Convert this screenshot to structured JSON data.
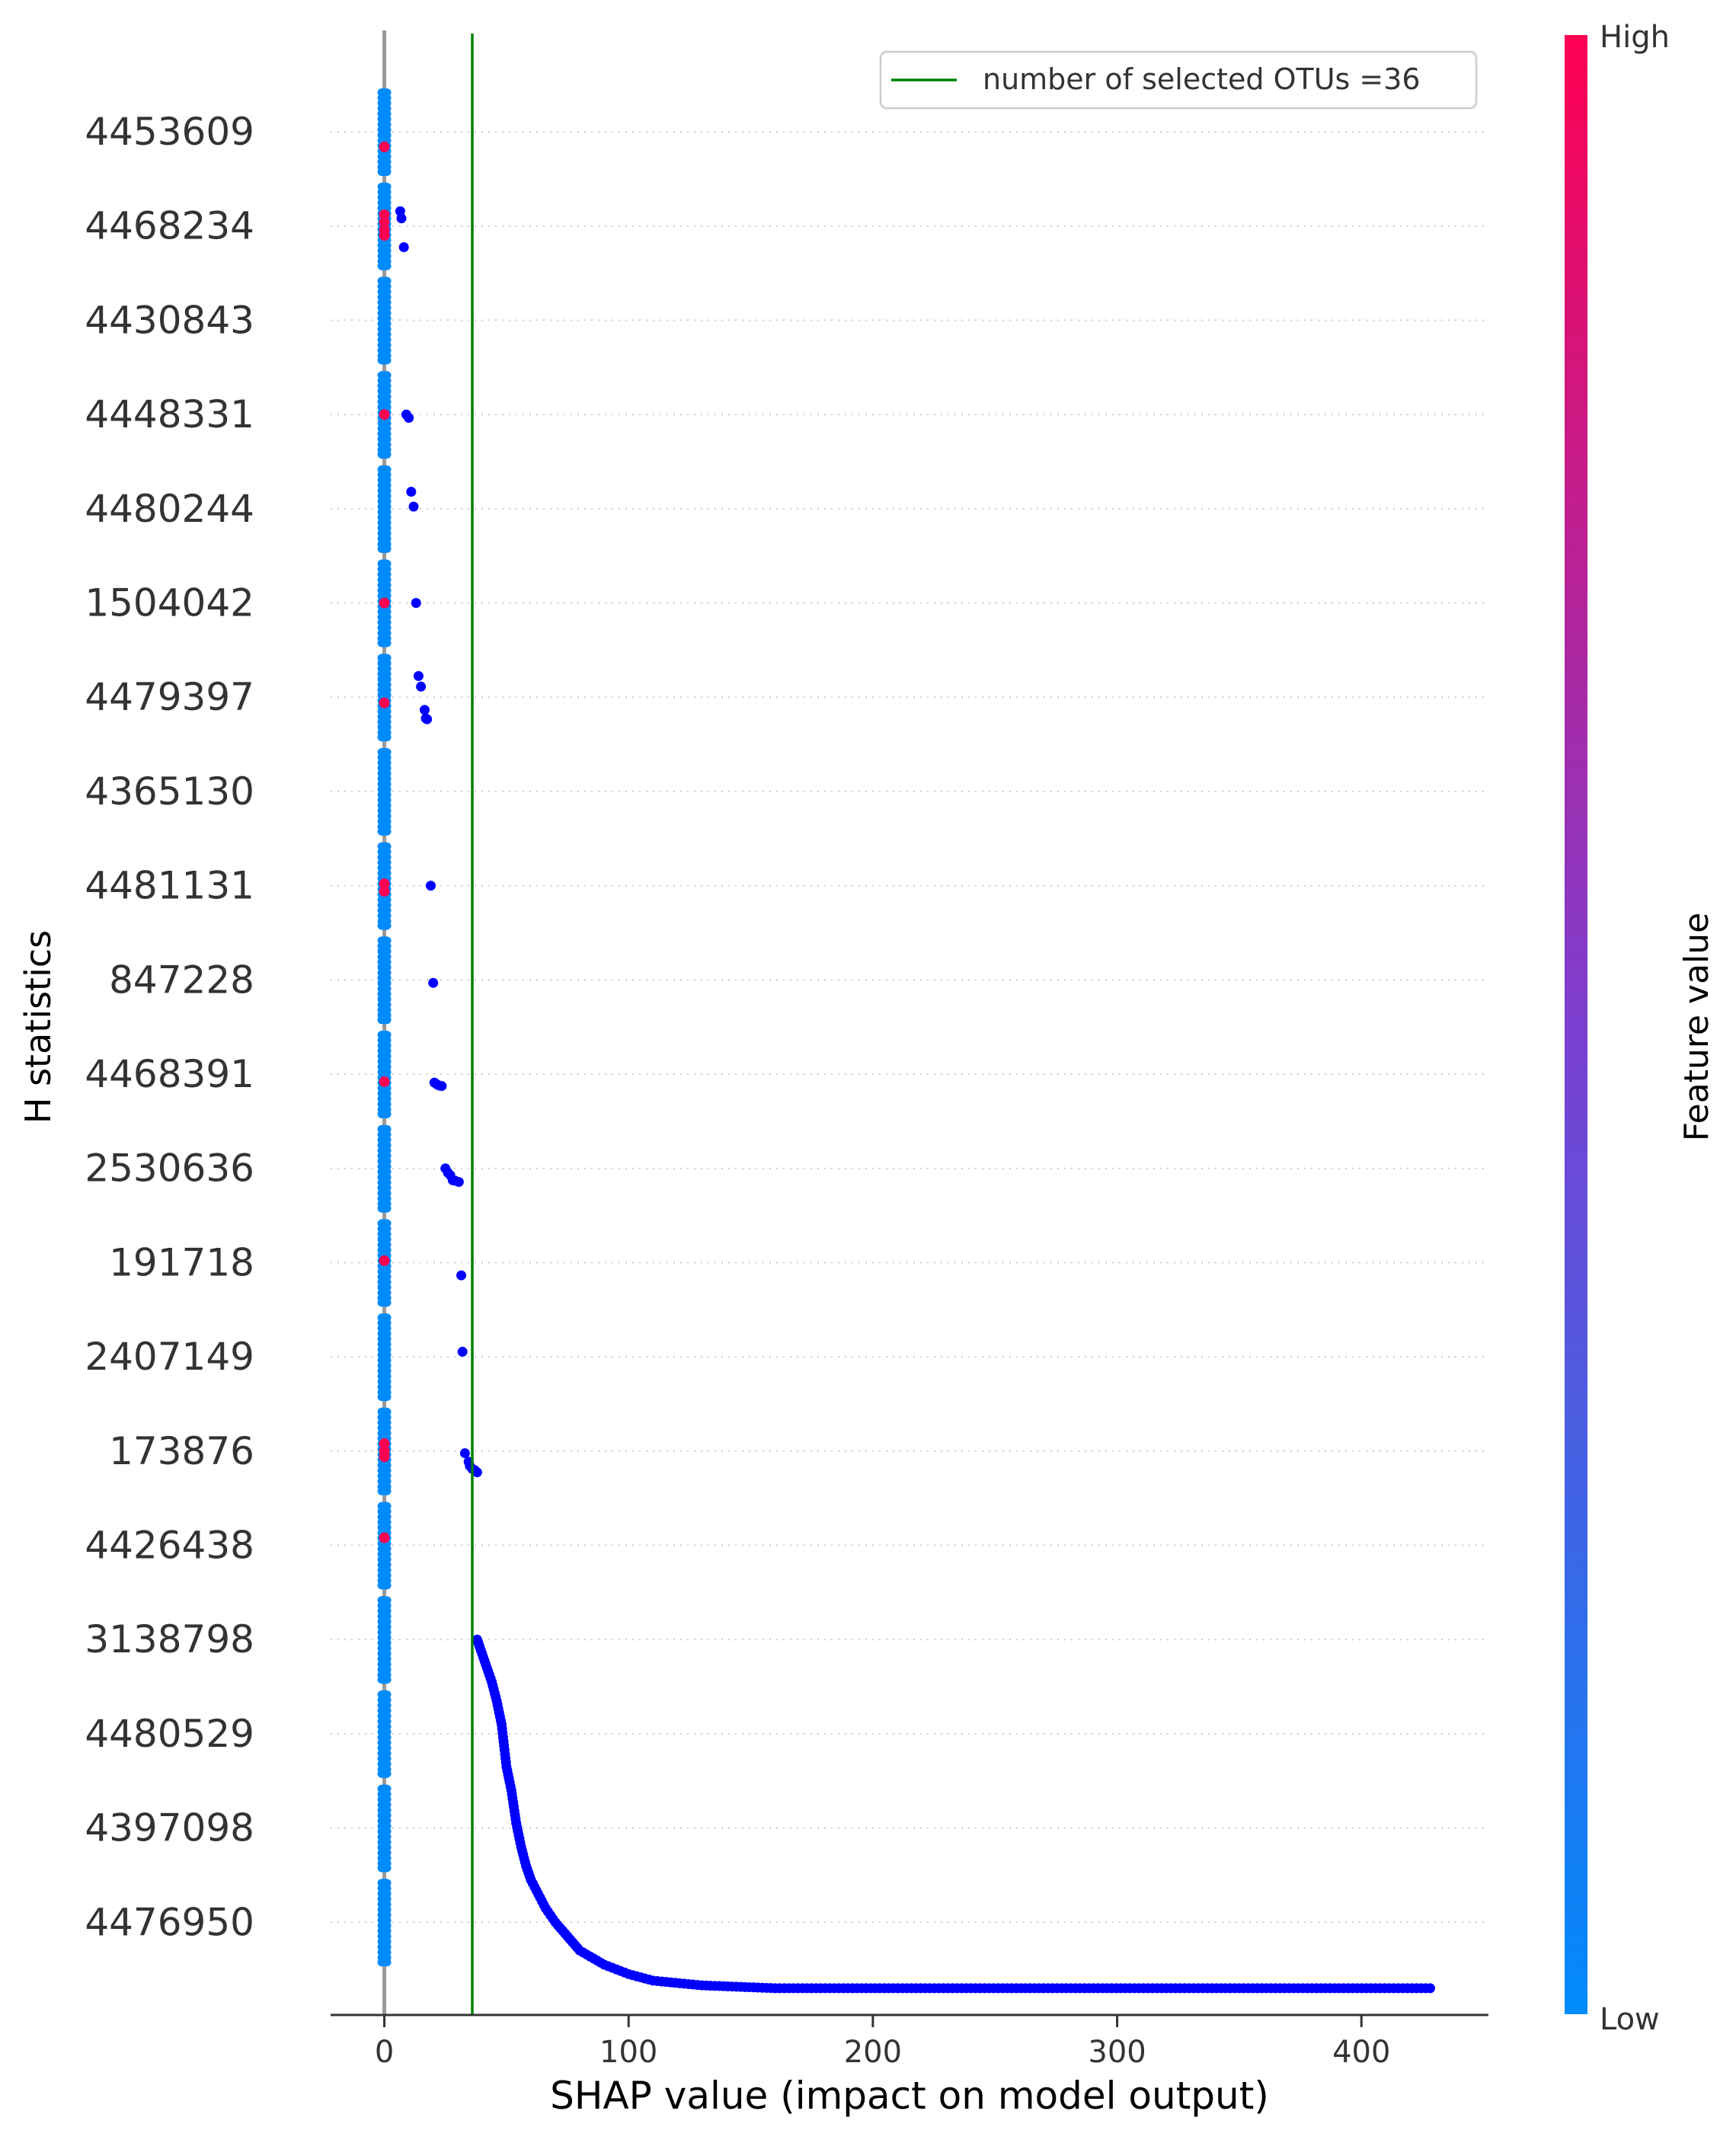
{
  "chart_data": {
    "type": "scatter",
    "title": "",
    "xlabel": "SHAP value (impact on model output)",
    "ylabel": "H statistics",
    "xlim": [
      -22,
      452
    ],
    "xticks": [
      0,
      100,
      200,
      300,
      400
    ],
    "grid": "horizontal dotted",
    "categories": [
      "4453609",
      "4468234",
      "4430843",
      "4448331",
      "4480244",
      "1504042",
      "4479397",
      "4365130",
      "4481131",
      "847228",
      "4468391",
      "2530636",
      "191718",
      "2407149",
      "173876",
      "4426438",
      "3138798",
      "4480529",
      "4397098",
      "4476950"
    ],
    "vertical_line": {
      "x": 36,
      "label": "number of selected OTUs =36",
      "color": "#008000"
    },
    "legend_position": "top-right",
    "zero_line_color": "#999999",
    "colorbar": {
      "label": "Feature value",
      "high_label": "High",
      "low_label": "Low",
      "high_color": "#ff0052",
      "mid_color": "#7c3fd0",
      "low_color": "#008bfb"
    },
    "series_color_low": "#008bfb",
    "series_color_high": "#ff0052",
    "outlier_color": "#0000ff",
    "rows": [
      {
        "feature": "4453609",
        "outliers": [],
        "high_marks": [
          0.4
        ]
      },
      {
        "feature": "4468234",
        "outliers": [
          [
            6.5,
            -0.35
          ],
          [
            7,
            -0.18
          ],
          [
            8,
            0.5
          ]
        ],
        "high_marks": [
          -0.3,
          -0.1,
          0.1,
          0.25
        ]
      },
      {
        "feature": "4430843",
        "outliers": [],
        "high_marks": []
      },
      {
        "feature": "4448331",
        "outliers": [
          [
            9,
            0.0
          ],
          [
            10,
            0.08
          ]
        ],
        "high_marks": [
          0.0
        ]
      },
      {
        "feature": "4480244",
        "outliers": [
          [
            11,
            -0.4
          ],
          [
            12,
            -0.05
          ]
        ],
        "high_marks": []
      },
      {
        "feature": "1504042",
        "outliers": [
          [
            13,
            0.0
          ]
        ],
        "high_marks": [
          0.0
        ]
      },
      {
        "feature": "4479397",
        "outliers": [
          [
            14,
            -0.5
          ],
          [
            15,
            -0.25
          ],
          [
            16.5,
            0.3
          ],
          [
            17,
            0.5
          ],
          [
            17.5,
            0.52
          ]
        ],
        "high_marks": [
          0.15
        ]
      },
      {
        "feature": "4365130",
        "outliers": [],
        "high_marks": []
      },
      {
        "feature": "4481131",
        "outliers": [
          [
            19,
            0.0
          ]
        ],
        "high_marks": [
          -0.05,
          0.15
        ]
      },
      {
        "feature": "847228",
        "outliers": [
          [
            20,
            0.07
          ]
        ],
        "high_marks": []
      },
      {
        "feature": "4468391",
        "outliers": [
          [
            20.5,
            0.2
          ],
          [
            21.5,
            0.24
          ],
          [
            22.5,
            0.27
          ],
          [
            23.5,
            0.28
          ]
        ],
        "high_marks": [
          0.2
        ]
      },
      {
        "feature": "2530636",
        "outliers": [
          [
            25,
            0.0
          ],
          [
            26,
            0.1
          ],
          [
            27,
            0.16
          ],
          [
            28,
            0.28
          ],
          [
            29,
            0.29
          ],
          [
            30.5,
            0.32
          ]
        ],
        "high_marks": []
      },
      {
        "feature": "191718",
        "outliers": [
          [
            31.5,
            0.3
          ]
        ],
        "high_marks": [
          -0.05
        ]
      },
      {
        "feature": "2407149",
        "outliers": [
          [
            32,
            -0.12
          ]
        ],
        "high_marks": []
      },
      {
        "feature": "173876",
        "outliers": [
          [
            33,
            0.05
          ],
          [
            34.5,
            0.25
          ],
          [
            35,
            0.35
          ],
          [
            36,
            0.42
          ],
          [
            37,
            0.45
          ],
          [
            38,
            0.5
          ]
        ],
        "high_marks": [
          -0.2,
          0.0,
          0.15
        ]
      },
      {
        "feature": "4426438",
        "outliers": [],
        "high_marks": [
          -0.2
        ]
      },
      {
        "feature": "3138798",
        "outliers": [],
        "high_marks": []
      },
      {
        "feature": "4480529",
        "outliers": [],
        "high_marks": []
      },
      {
        "feature": "4397098",
        "outliers": [],
        "high_marks": []
      },
      {
        "feature": "4476950",
        "outliers": [],
        "high_marks": []
      }
    ],
    "tail_curve": [
      [
        38,
        16.0
      ],
      [
        40,
        16.15
      ],
      [
        42,
        16.3
      ],
      [
        44,
        16.45
      ],
      [
        46,
        16.65
      ],
      [
        48,
        16.9
      ],
      [
        50,
        17.35
      ],
      [
        52,
        17.6
      ],
      [
        54,
        17.95
      ],
      [
        56,
        18.2
      ],
      [
        58,
        18.4
      ],
      [
        60,
        18.55
      ],
      [
        63,
        18.7
      ],
      [
        66,
        18.85
      ],
      [
        70,
        19.0
      ],
      [
        75,
        19.15
      ],
      [
        80,
        19.3
      ],
      [
        90,
        19.45
      ],
      [
        100,
        19.55
      ],
      [
        110,
        19.62
      ],
      [
        130,
        19.67
      ],
      [
        160,
        19.7
      ],
      [
        430,
        19.7
      ]
    ]
  }
}
